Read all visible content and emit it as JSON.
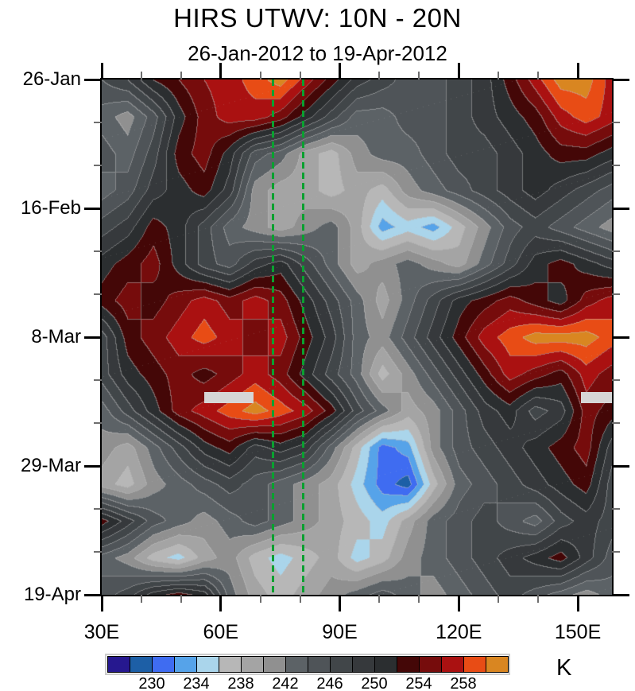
{
  "chart_data": {
    "type": "heatmap",
    "title": "HIRS UTWV: 10N - 20N",
    "subtitle": "26-Jan-2012 to 19-Apr-2012",
    "units": "K",
    "x_axis": {
      "kind": "longitude",
      "range": [
        30,
        158.6
      ],
      "tick_lons": [
        30,
        60,
        90,
        120,
        150
      ],
      "tick_labels": [
        "30E",
        "60E",
        "90E",
        "120E",
        "150E"
      ],
      "minor_step_deg": 10
    },
    "y_axis": {
      "kind": "time",
      "range_days": [
        0,
        84
      ],
      "tick_days": [
        0,
        21,
        42,
        63,
        84
      ],
      "tick_labels": [
        "26-Jan",
        "16-Feb",
        "8-Mar",
        "29-Mar",
        "19-Apr"
      ],
      "minor_step_days": 7
    },
    "colorbar": {
      "levels": [
        228,
        230,
        232,
        234,
        236,
        238,
        240,
        242,
        244,
        246,
        248,
        250,
        252,
        254,
        256,
        258,
        260
      ],
      "tick_labels": [
        "230",
        "234",
        "238",
        "242",
        "246",
        "250",
        "254",
        "258"
      ],
      "colors": [
        "#26188f",
        "#1d5fa6",
        "#3f6cf1",
        "#56a3e9",
        "#aad5eb",
        "#b7b7b7",
        "#a4a4a4",
        "#909090",
        "#5c6266",
        "#4f5458",
        "#414649",
        "#36393c",
        "#2b2e30",
        "#440707",
        "#760c0c",
        "#aa1111",
        "#e84c15",
        "#d98621"
      ]
    },
    "reference_lines": {
      "color": "#0aa030",
      "style": "dashed",
      "lons": [
        73.1,
        80.8
      ]
    },
    "missing_data_bars": [
      {
        "lon_min": 55.9,
        "lon_max": 68.3,
        "day_min": 50.9,
        "day_max": 52.8
      },
      {
        "lon_min": 150.7,
        "lon_max": 158.6,
        "day_min": 50.9,
        "day_max": 52.8
      }
    ],
    "grid": {
      "lons": [
        30,
        36.4,
        42.8,
        49.2,
        55.6,
        62,
        68.4,
        74.8,
        81.2,
        87.6,
        94,
        100.4,
        106.8,
        113.2,
        119.6,
        126,
        132.4,
        138.8,
        145.2,
        151.6,
        158
      ],
      "days": [
        0,
        6,
        12,
        18,
        24,
        30,
        36,
        42,
        48,
        54,
        60,
        66,
        72,
        78,
        84
      ],
      "values": [
        [
          246,
          248,
          252,
          254,
          256,
          257,
          259,
          261,
          257,
          253,
          249,
          247,
          245,
          245,
          247,
          249,
          253,
          257,
          261,
          261,
          257
        ],
        [
          243,
          241,
          245,
          251,
          255,
          257,
          257,
          255,
          251,
          247,
          243,
          243,
          245,
          245,
          247,
          249,
          251,
          253,
          257,
          259,
          257
        ],
        [
          245,
          243,
          247,
          253,
          255,
          251,
          245,
          243,
          239,
          237,
          241,
          243,
          243,
          245,
          247,
          247,
          249,
          251,
          253,
          253,
          251
        ],
        [
          243,
          245,
          249,
          251,
          253,
          249,
          241,
          239,
          239,
          237,
          239,
          237,
          241,
          243,
          245,
          247,
          249,
          251,
          249,
          247,
          245
        ],
        [
          247,
          249,
          253,
          251,
          247,
          243,
          241,
          239,
          241,
          243,
          239,
          233,
          235,
          233,
          237,
          241,
          245,
          247,
          245,
          243,
          241
        ],
        [
          251,
          253,
          255,
          251,
          247,
          245,
          249,
          251,
          247,
          243,
          239,
          241,
          243,
          241,
          239,
          243,
          247,
          251,
          253,
          251,
          249
        ],
        [
          253,
          255,
          253,
          255,
          257,
          255,
          257,
          255,
          251,
          247,
          243,
          239,
          243,
          247,
          251,
          253,
          255,
          253,
          251,
          255,
          257
        ],
        [
          247,
          253,
          255,
          257,
          259,
          257,
          255,
          257,
          253,
          249,
          243,
          241,
          245,
          249,
          253,
          257,
          259,
          261,
          261,
          261,
          259
        ],
        [
          247,
          251,
          253,
          255,
          253,
          255,
          257,
          255,
          251,
          247,
          243,
          237,
          241,
          245,
          249,
          253,
          257,
          255,
          253,
          257,
          255
        ],
        [
          243,
          247,
          251,
          255,
          257,
          259,
          261,
          259,
          257,
          253,
          247,
          243,
          239,
          241,
          245,
          249,
          251,
          247,
          249,
          255,
          253
        ],
        [
          241,
          239,
          243,
          247,
          251,
          253,
          249,
          251,
          249,
          243,
          237,
          231,
          233,
          241,
          245,
          247,
          249,
          251,
          253,
          255,
          249
        ],
        [
          239,
          237,
          241,
          243,
          245,
          247,
          245,
          243,
          241,
          239,
          235,
          231,
          229,
          237,
          243,
          245,
          247,
          249,
          251,
          253,
          247
        ],
        [
          253,
          249,
          245,
          243,
          241,
          243,
          245,
          243,
          241,
          239,
          237,
          235,
          239,
          243,
          245,
          247,
          245,
          243,
          247,
          249,
          247
        ],
        [
          243,
          241,
          237,
          235,
          239,
          241,
          237,
          235,
          237,
          239,
          235,
          237,
          241,
          243,
          245,
          247,
          249,
          251,
          253,
          249,
          245
        ],
        [
          245,
          247,
          251,
          253,
          251,
          243,
          239,
          237,
          239,
          241,
          243,
          245,
          243,
          241,
          243,
          245,
          247,
          245,
          243,
          241,
          243
        ]
      ]
    }
  }
}
